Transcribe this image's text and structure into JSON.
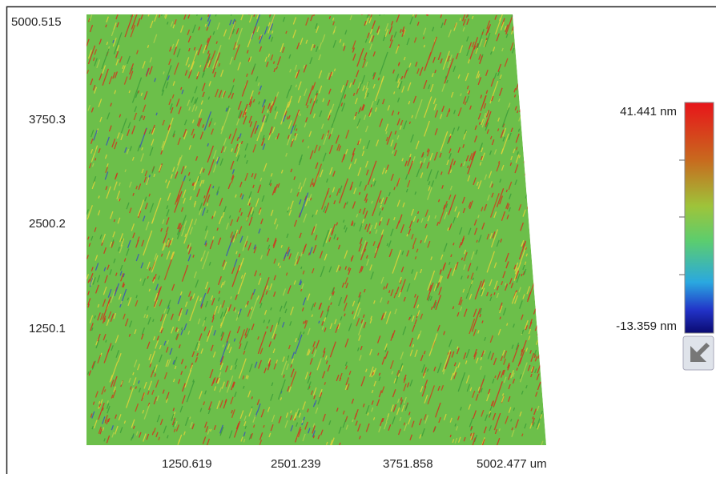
{
  "y_axis": {
    "labels": [
      "5000.515",
      "3750.3",
      "2500.2",
      "1250.1"
    ]
  },
  "x_axis": {
    "labels": [
      "1250.619",
      "2501.239",
      "3751.858",
      "5002.477 um"
    ]
  },
  "colorbar": {
    "max_label": "41.441 nm",
    "min_label": "-13.359 nm"
  }
}
